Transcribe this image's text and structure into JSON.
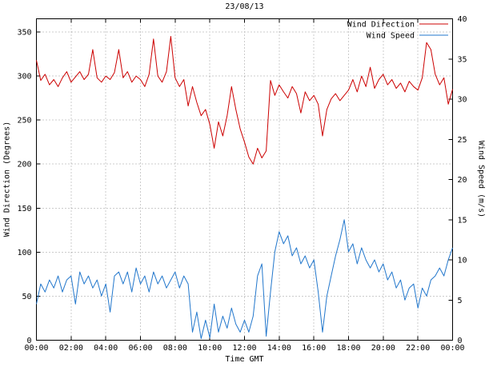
{
  "colors": {
    "background": "#ffffff",
    "axis": "#000000",
    "grid": "#999999",
    "wind_direction": "#cc0000",
    "wind_speed": "#2277cc"
  },
  "chart_data": {
    "type": "line",
    "title": "23/08/13",
    "xlabel": "Time GMT",
    "ylabel_left": "Wind Direction (Degrees)",
    "ylabel_right": "Wind Speed (m/s)",
    "legend_position": "top-right-inside",
    "grid": "dotted",
    "x_range": [
      0,
      24
    ],
    "x_tick_values": [
      0,
      2,
      4,
      6,
      8,
      10,
      12,
      14,
      16,
      18,
      20,
      22,
      24
    ],
    "x_tick_labels": [
      "00:00",
      "02:00",
      "04:00",
      "06:00",
      "08:00",
      "10:00",
      "12:00",
      "14:00",
      "16:00",
      "18:00",
      "20:00",
      "22:00",
      "00:00"
    ],
    "y_left": {
      "ticks": [
        0,
        50,
        100,
        150,
        200,
        250,
        300,
        350
      ],
      "range": [
        0,
        365
      ]
    },
    "y_right": {
      "ticks": [
        0,
        5,
        10,
        15,
        20,
        25,
        30,
        35,
        40
      ],
      "range": [
        0,
        40
      ]
    },
    "x_start": 0,
    "x_step_hours": 0.25,
    "series": [
      {
        "name": "Wind Direction",
        "axis": "left",
        "color": "#cc0000",
        "values": [
          318,
          295,
          302,
          290,
          296,
          288,
          298,
          305,
          293,
          299,
          305,
          296,
          302,
          330,
          298,
          293,
          300,
          296,
          304,
          330,
          298,
          305,
          293,
          300,
          296,
          288,
          302,
          342,
          300,
          293,
          305,
          345,
          298,
          288,
          296,
          266,
          288,
          270,
          255,
          262,
          245,
          218,
          248,
          232,
          255,
          288,
          262,
          240,
          225,
          208,
          200,
          218,
          207,
          215,
          295,
          278,
          290,
          282,
          275,
          288,
          280,
          258,
          282,
          272,
          278,
          268,
          232,
          262,
          274,
          280,
          272,
          278,
          284,
          296,
          282,
          300,
          288,
          310,
          286,
          296,
          302,
          290,
          296,
          286,
          292,
          282,
          294,
          288,
          284,
          298,
          338,
          330,
          302,
          290,
          298,
          268,
          285
        ]
      },
      {
        "name": "Wind Speed",
        "axis": "right",
        "color": "#2277cc",
        "values": [
          4.5,
          7,
          6,
          7.5,
          6.5,
          8,
          6,
          7.5,
          8,
          4.5,
          8.5,
          7,
          8,
          6.5,
          7.5,
          5.5,
          7,
          3.5,
          8,
          8.5,
          7,
          8.5,
          6,
          9,
          7,
          8,
          6,
          8.5,
          7,
          8,
          6.5,
          7.5,
          8.5,
          6.5,
          8,
          7,
          1,
          3.5,
          0.2,
          2.5,
          0.3,
          4.5,
          1,
          3,
          1.5,
          4,
          2,
          1,
          2.5,
          1,
          3,
          8,
          9.5,
          0.5,
          6,
          11,
          13.5,
          12,
          13,
          10.5,
          11.5,
          9.5,
          10.5,
          9,
          10,
          6,
          1,
          5.5,
          8,
          10.5,
          12.5,
          15,
          11,
          12,
          9.5,
          11.5,
          10,
          9,
          10,
          8.5,
          9.5,
          7.5,
          8.5,
          6.5,
          7.5,
          5,
          6.5,
          7,
          4,
          6.5,
          5.5,
          7.5,
          8,
          9,
          8,
          10,
          11.5
        ]
      }
    ]
  }
}
